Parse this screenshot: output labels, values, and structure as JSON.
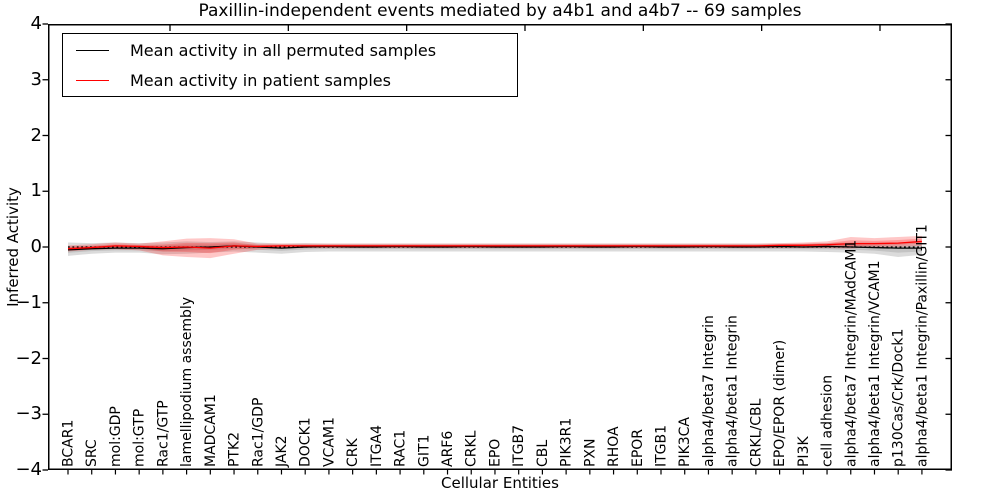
{
  "chart_data": {
    "type": "line",
    "title": "Paxillin-independent events mediated by a4b1 and a4b7 -- 69 samples",
    "xlabel": "Cellular Entities",
    "ylabel": "Inferred Activity",
    "ylim": [
      -4,
      4
    ],
    "yticks": [
      4,
      3,
      2,
      1,
      0,
      -1,
      -2,
      -3,
      -4
    ],
    "grid": false,
    "legend_position": "upper left",
    "zero_line": {
      "style": "dotted",
      "color": "#000000",
      "y": 0
    },
    "categories": [
      "BCAR1",
      "SRC",
      "mol:GDP",
      "mol:GTP",
      "Rac1/GTP",
      "lamellipodium assembly",
      "MADCAM1",
      "PTK2",
      "Rac1/GDP",
      "JAK2",
      "DOCK1",
      "VCAM1",
      "CRK",
      "ITGA4",
      "RAC1",
      "GIT1",
      "ARF6",
      "CRKL",
      "EPO",
      "ITGB7",
      "CBL",
      "PIK3R1",
      "PXN",
      "RHOA",
      "EPOR",
      "ITGB1",
      "PIK3CA",
      "alpha4/beta7 Integrin",
      "alpha4/beta1 Integrin",
      "CRKL/CBL",
      "EPO/EPOR (dimer)",
      "PI3K",
      "cell adhesion",
      "alpha4/beta7 Integrin/MAdCAM1",
      "alpha4/beta1 Integrin/VCAM1",
      "p130Cas/Crk/Dock1",
      "alpha4/beta1 Integrin/Paxillin/GIT1"
    ],
    "series": [
      {
        "name": "Mean activity in all permuted samples",
        "color": "#000000",
        "values": [
          -0.05,
          -0.03,
          -0.02,
          -0.02,
          -0.03,
          -0.01,
          0.0,
          0.02,
          0.0,
          -0.02,
          0.0,
          0.01,
          0.0,
          0.0,
          0.01,
          0.0,
          0.0,
          0.01,
          0.0,
          0.0,
          0.0,
          0.01,
          0.0,
          0.0,
          0.01,
          0.0,
          0.0,
          0.01,
          0.0,
          0.0,
          0.01,
          0.0,
          0.01,
          0.0,
          -0.01,
          -0.02,
          -0.02
        ]
      },
      {
        "name": "Mean activity in patient samples",
        "color": "#ff0000",
        "values": [
          -0.03,
          -0.01,
          0.02,
          0.01,
          -0.01,
          0.0,
          -0.02,
          0.02,
          0.01,
          0.02,
          0.02,
          0.02,
          0.02,
          0.02,
          0.02,
          0.02,
          0.02,
          0.02,
          0.02,
          0.02,
          0.02,
          0.02,
          0.02,
          0.02,
          0.02,
          0.02,
          0.02,
          0.02,
          0.02,
          0.02,
          0.03,
          0.03,
          0.04,
          0.06,
          0.06,
          0.07,
          0.1
        ]
      }
    ],
    "bands": [
      {
        "name": "permuted samples range",
        "color": "#999999",
        "opacity": 0.35,
        "lower": [
          -0.16,
          -0.12,
          -0.1,
          -0.1,
          -0.13,
          -0.12,
          -0.1,
          -0.08,
          -0.1,
          -0.12,
          -0.09,
          -0.08,
          -0.08,
          -0.08,
          -0.08,
          -0.08,
          -0.08,
          -0.08,
          -0.08,
          -0.08,
          -0.08,
          -0.08,
          -0.08,
          -0.08,
          -0.08,
          -0.08,
          -0.08,
          -0.08,
          -0.08,
          -0.08,
          -0.08,
          -0.08,
          -0.09,
          -0.1,
          -0.12,
          -0.18,
          -0.14
        ],
        "upper": [
          0.08,
          0.07,
          0.08,
          0.07,
          0.08,
          0.1,
          0.09,
          0.1,
          0.08,
          0.06,
          0.07,
          0.06,
          0.06,
          0.06,
          0.06,
          0.06,
          0.06,
          0.06,
          0.06,
          0.06,
          0.06,
          0.06,
          0.06,
          0.06,
          0.06,
          0.06,
          0.06,
          0.06,
          0.06,
          0.06,
          0.06,
          0.06,
          0.07,
          0.08,
          0.08,
          0.08,
          0.08
        ]
      },
      {
        "name": "patient samples range",
        "color": "#ff0000",
        "opacity": 0.22,
        "lower": [
          -0.08,
          -0.05,
          -0.04,
          -0.06,
          -0.15,
          -0.18,
          -0.2,
          -0.12,
          -0.05,
          -0.03,
          -0.02,
          -0.02,
          -0.02,
          -0.02,
          -0.02,
          -0.02,
          -0.02,
          -0.02,
          -0.02,
          -0.02,
          -0.02,
          -0.02,
          -0.02,
          -0.02,
          -0.02,
          -0.02,
          -0.02,
          -0.02,
          -0.02,
          -0.02,
          -0.02,
          -0.02,
          -0.02,
          -0.03,
          0.0,
          0.0,
          0.02
        ],
        "upper": [
          0.03,
          0.05,
          0.08,
          0.06,
          0.1,
          0.15,
          0.16,
          0.14,
          0.06,
          0.06,
          0.06,
          0.06,
          0.06,
          0.06,
          0.06,
          0.06,
          0.06,
          0.06,
          0.06,
          0.06,
          0.06,
          0.06,
          0.06,
          0.06,
          0.06,
          0.06,
          0.06,
          0.06,
          0.06,
          0.06,
          0.07,
          0.08,
          0.1,
          0.18,
          0.16,
          0.18,
          0.2
        ]
      }
    ]
  },
  "legend": {
    "items": [
      {
        "label": "Mean activity in all permuted samples",
        "color": "#000000"
      },
      {
        "label": "Mean activity in patient samples",
        "color": "#ff0000"
      }
    ]
  }
}
